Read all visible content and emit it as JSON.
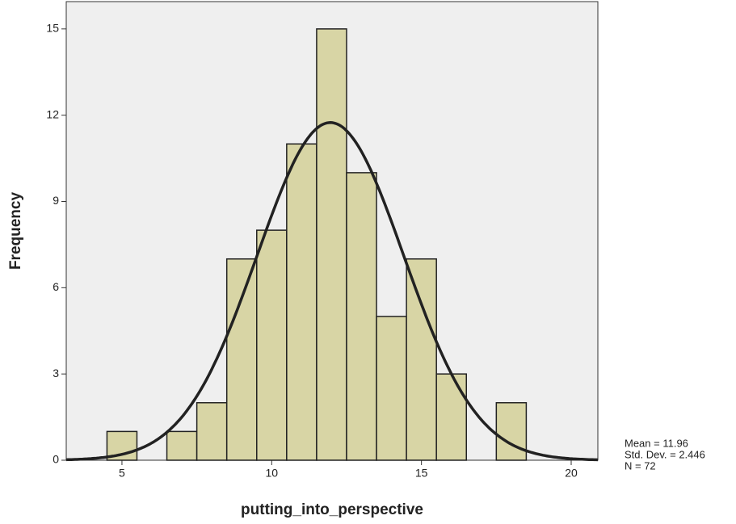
{
  "chart_data": {
    "type": "histogram",
    "x_label": "putting_into_perspective",
    "y_label": "Frequency",
    "bins": [
      4.5,
      5.5,
      6.5,
      7.5,
      8.5,
      9.5,
      10.5,
      11.5,
      12.5,
      13.5,
      14.5,
      15.5,
      16.5,
      17.5,
      18.5
    ],
    "counts": [
      1,
      0,
      1,
      2,
      7,
      8,
      11,
      15,
      10,
      5,
      7,
      3,
      0,
      2
    ],
    "color": "#d8d5a5",
    "edge_color": "#222222",
    "curve_color": "#222222",
    "plot_background": "#efefef",
    "xlim": [
      3.14,
      20.89
    ],
    "ylim": [
      0,
      15.95
    ],
    "xticks": [
      5,
      10,
      15,
      20
    ],
    "yticks": [
      0,
      3,
      6,
      9,
      12,
      15
    ],
    "mean": {
      "value": 11.96,
      "label": "Mean = 11.96"
    },
    "std_dev": {
      "value": 2.446,
      "label": "Std. Dev. = 2.446"
    },
    "n": {
      "value": 72,
      "label": "N = 72"
    }
  }
}
